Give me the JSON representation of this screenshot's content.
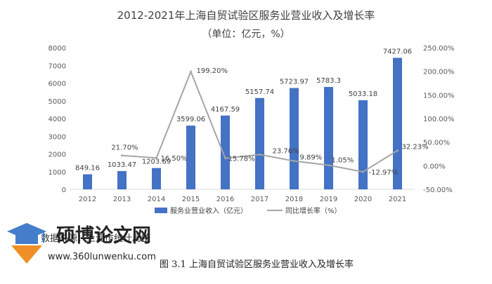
{
  "chart_data": {
    "type": "bar",
    "title": "2012-2021年上海自贸试验区服务业营业收入及增长率",
    "subtitle": "（单位：亿元，%）",
    "categories": [
      "2012",
      "2013",
      "2014",
      "2015",
      "2016",
      "2017",
      "2018",
      "2019",
      "2020",
      "2021"
    ],
    "series": [
      {
        "name": "服务业营业收入（亿元）",
        "type": "bar",
        "axis": "left",
        "color": "#4472C4",
        "values": [
          849.16,
          1033.47,
          1203.69,
          3599.06,
          4167.59,
          5157.74,
          5723.97,
          5783.3,
          5033.18,
          7427.06
        ],
        "labels": [
          "849.16",
          "1033.47",
          "1203.69",
          "3599.06",
          "4167.59",
          "5157.74",
          "5723.97",
          "5783.3",
          "5033.18",
          "7427.06"
        ]
      },
      {
        "name": "同比增长率（%）",
        "type": "line",
        "axis": "right",
        "color": "#A5A5A5",
        "values": [
          null,
          21.7,
          16.5,
          199.2,
          15.78,
          23.76,
          9.89,
          1.05,
          -12.97,
          32.23
        ],
        "labels": [
          "",
          "21.70%",
          "16.50%",
          "199.20%",
          "15.78%",
          "23.76%",
          "9.89%",
          "1.05%",
          "-12.97%",
          "32.23%"
        ]
      }
    ],
    "y_left": {
      "ylim": [
        0,
        8000
      ],
      "ticks": [
        "0",
        "1000",
        "2000",
        "3000",
        "4000",
        "5000",
        "6000",
        "7000",
        "8000"
      ]
    },
    "y_right": {
      "ylim": [
        -50,
        250
      ],
      "ticks": [
        "-50.00%",
        "0.00%",
        "50.00%",
        "100.00%",
        "150.00%",
        "200.00%",
        "250.00%"
      ]
    },
    "grid": false,
    "legend_placement": "bottom"
  },
  "source_note": "数据来源：上海市统计局整",
  "caption": "图 3.1 上海自贸试验区服务业营业收入及增长率",
  "watermark": {
    "name": "硕博论文网",
    "url": "www.360lunwenku.com",
    "logo_icon": "graduation-cap-icon"
  }
}
